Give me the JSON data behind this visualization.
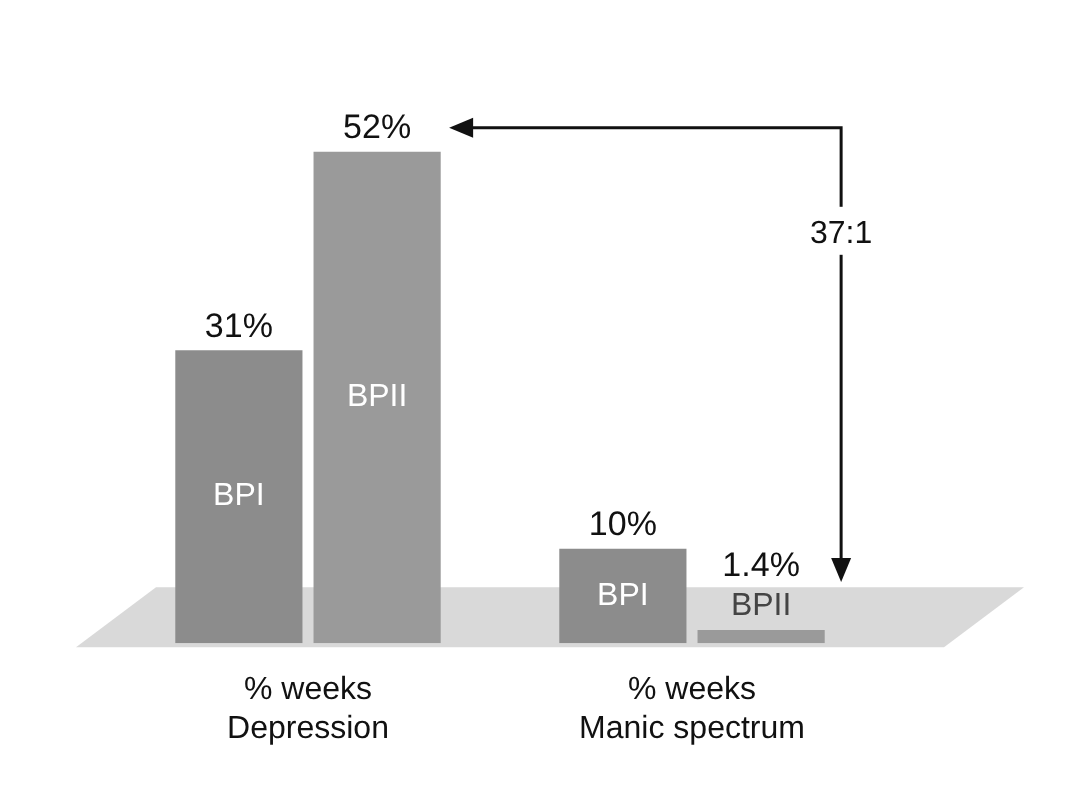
{
  "chart_data": {
    "type": "bar",
    "categories": [
      "% weeks\nDepression",
      "% weeks\nManic spectrum"
    ],
    "series": [
      {
        "name": "BPI",
        "color": "#8c8c8c",
        "values": [
          31,
          10
        ],
        "value_labels": [
          "31%",
          "10%"
        ]
      },
      {
        "name": "BPII",
        "color": "#9a9a9a",
        "values": [
          52,
          1.4
        ],
        "value_labels": [
          "52%",
          "1.4%"
        ]
      }
    ],
    "annotations": [
      "37:1"
    ],
    "legend": false,
    "grid": false
  }
}
